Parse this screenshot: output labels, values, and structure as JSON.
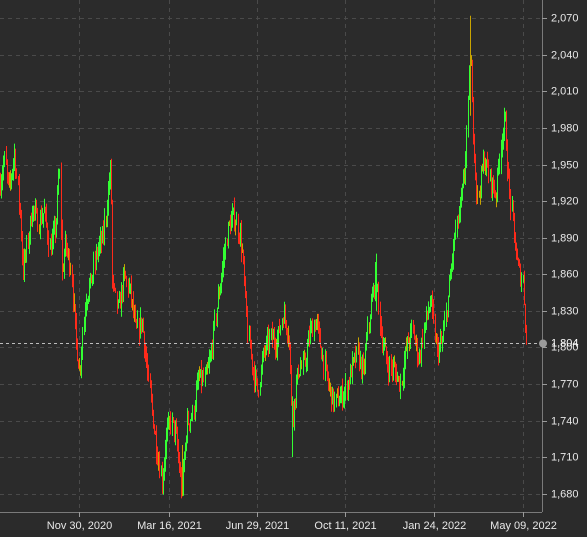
{
  "chart_data": {
    "type": "candlestick",
    "title": "",
    "xlabel": "",
    "ylabel": "",
    "ylim": [
      1665,
      2085
    ],
    "y_ticks": [
      1680,
      1710,
      1740,
      1770,
      1800,
      1830,
      1860,
      1890,
      1920,
      1950,
      1980,
      2010,
      2040,
      2070
    ],
    "y_tick_labels": [
      "1,680",
      "1,710",
      "1,740",
      "1,770",
      "1,800",
      "1,830",
      "1,860",
      "1,890",
      "1,920",
      "1,950",
      "1,980",
      "2,010",
      "2,040",
      "2,070"
    ],
    "x_ticks": [
      "2020-11-30",
      "2021-03-16",
      "2021-06-29",
      "2021-10-11",
      "2022-01-24",
      "2022-05-09"
    ],
    "x_tick_labels": [
      "Nov 30, 2020",
      "Mar 16, 2021",
      "Jun 29, 2021",
      "Oct 11, 2021",
      "Jan 24, 2022",
      "May 09, 2022"
    ],
    "x_range": [
      "2020-08-28",
      "2022-06-01"
    ],
    "last_price": 1804,
    "last_price_label": "1,804",
    "grid": true,
    "colors": {
      "up": "#33ff33",
      "down": "#ff2a1a",
      "doji": "#c9a400",
      "background": "#2b2b2b",
      "grid": "#4a4a4a"
    },
    "price_path": [
      [
        "2020-08-28",
        1935
      ],
      [
        "2020-09-02",
        1955
      ],
      [
        "2020-09-07",
        1928
      ],
      [
        "2020-09-14",
        1960
      ],
      [
        "2020-09-21",
        1905
      ],
      [
        "2020-09-24",
        1862
      ],
      [
        "2020-09-29",
        1885
      ],
      [
        "2020-10-05",
        1915
      ],
      [
        "2020-10-12",
        1902
      ],
      [
        "2020-10-19",
        1912
      ],
      [
        "2020-10-26",
        1880
      ],
      [
        "2020-11-02",
        1900
      ],
      [
        "2020-11-06",
        1950
      ],
      [
        "2020-11-09",
        1860
      ],
      [
        "2020-11-13",
        1885
      ],
      [
        "2020-11-20",
        1865
      ],
      [
        "2020-11-25",
        1810
      ],
      [
        "2020-11-30",
        1780
      ],
      [
        "2020-12-07",
        1840
      ],
      [
        "2020-12-14",
        1855
      ],
      [
        "2020-12-21",
        1880
      ],
      [
        "2020-12-28",
        1890
      ],
      [
        "2021-01-06",
        1950
      ],
      [
        "2021-01-08",
        1850
      ],
      [
        "2021-01-15",
        1830
      ],
      [
        "2021-01-22",
        1858
      ],
      [
        "2021-01-29",
        1845
      ],
      [
        "2021-02-05",
        1812
      ],
      [
        "2021-02-12",
        1822
      ],
      [
        "2021-02-19",
        1775
      ],
      [
        "2021-02-26",
        1735
      ],
      [
        "2021-03-03",
        1710
      ],
      [
        "2021-03-08",
        1690
      ],
      [
        "2021-03-12",
        1725
      ],
      [
        "2021-03-18",
        1740
      ],
      [
        "2021-03-24",
        1728
      ],
      [
        "2021-03-31",
        1685
      ],
      [
        "2021-04-06",
        1738
      ],
      [
        "2021-04-13",
        1745
      ],
      [
        "2021-04-20",
        1775
      ],
      [
        "2021-04-27",
        1772
      ],
      [
        "2021-05-04",
        1790
      ],
      [
        "2021-05-11",
        1830
      ],
      [
        "2021-05-18",
        1865
      ],
      [
        "2021-05-25",
        1898
      ],
      [
        "2021-06-01",
        1908
      ],
      [
        "2021-06-08",
        1892
      ],
      [
        "2021-06-11",
        1875
      ],
      [
        "2021-06-17",
        1812
      ],
      [
        "2021-06-24",
        1780
      ],
      [
        "2021-06-29",
        1765
      ],
      [
        "2021-07-06",
        1795
      ],
      [
        "2021-07-14",
        1808
      ],
      [
        "2021-07-22",
        1805
      ],
      [
        "2021-07-29",
        1828
      ],
      [
        "2021-08-05",
        1812
      ],
      [
        "2021-08-09",
        1745
      ],
      [
        "2021-08-16",
        1782
      ],
      [
        "2021-08-23",
        1785
      ],
      [
        "2021-08-30",
        1812
      ],
      [
        "2021-09-06",
        1822
      ],
      [
        "2021-09-13",
        1795
      ],
      [
        "2021-09-20",
        1770
      ],
      [
        "2021-09-27",
        1755
      ],
      [
        "2021-10-04",
        1758
      ],
      [
        "2021-10-11",
        1765
      ],
      [
        "2021-10-18",
        1782
      ],
      [
        "2021-10-25",
        1795
      ],
      [
        "2021-11-01",
        1778
      ],
      [
        "2021-11-08",
        1825
      ],
      [
        "2021-11-16",
        1860
      ],
      [
        "2021-11-22",
        1810
      ],
      [
        "2021-11-30",
        1785
      ],
      [
        "2021-12-07",
        1782
      ],
      [
        "2021-12-15",
        1770
      ],
      [
        "2021-12-22",
        1800
      ],
      [
        "2021-12-29",
        1815
      ],
      [
        "2022-01-06",
        1790
      ],
      [
        "2022-01-13",
        1820
      ],
      [
        "2022-01-20",
        1838
      ],
      [
        "2022-01-27",
        1796
      ],
      [
        "2022-02-03",
        1805
      ],
      [
        "2022-02-10",
        1845
      ],
      [
        "2022-02-17",
        1890
      ],
      [
        "2022-02-24",
        1915
      ],
      [
        "2022-03-01",
        1942
      ],
      [
        "2022-03-08",
        2045
      ],
      [
        "2022-03-10",
        1995
      ],
      [
        "2022-03-16",
        1920
      ],
      [
        "2022-03-24",
        1955
      ],
      [
        "2022-03-31",
        1938
      ],
      [
        "2022-04-07",
        1925
      ],
      [
        "2022-04-14",
        1975
      ],
      [
        "2022-04-18",
        1985
      ],
      [
        "2022-04-22",
        1935
      ],
      [
        "2022-04-28",
        1895
      ],
      [
        "2022-05-03",
        1865
      ],
      [
        "2022-05-09",
        1855
      ],
      [
        "2022-05-13",
        1804
      ]
    ]
  }
}
